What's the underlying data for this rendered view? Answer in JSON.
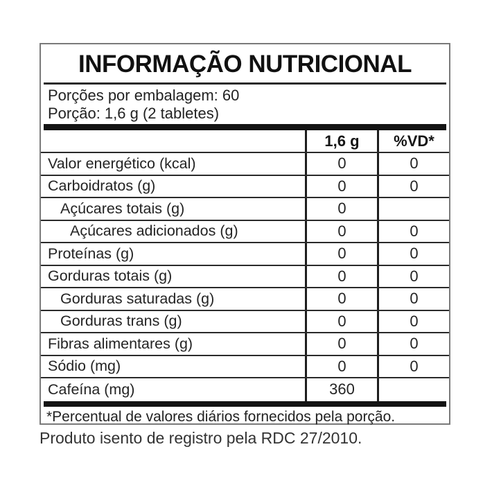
{
  "label": {
    "title": "INFORMAÇÃO NUTRICIONAL",
    "serving_info": {
      "servings_per_package": "Porções por embalagem: 60",
      "portion": "Porção: 1,6 g (2 tabletes)"
    },
    "table": {
      "columns": {
        "portion": "1,6 g",
        "daily_value": "%VD*"
      },
      "rows": [
        {
          "label": "Valor energético (kcal)",
          "portion": "0",
          "dv": "0"
        },
        {
          "label": "Carboidratos (g)",
          "portion": "0",
          "dv": "0"
        },
        {
          "label": "Açúcares totais (g)",
          "portion": "0",
          "dv": ""
        },
        {
          "label": "Açúcares adicionados (g)",
          "portion": "0",
          "dv": "0"
        },
        {
          "label": "Proteínas (g)",
          "portion": "0",
          "dv": "0"
        },
        {
          "label": "Gorduras totais (g)",
          "portion": "0",
          "dv": "0"
        },
        {
          "label": "Gorduras saturadas (g)",
          "portion": "0",
          "dv": "0"
        },
        {
          "label": "Gorduras trans (g)",
          "portion": "0",
          "dv": "0"
        },
        {
          "label": "Fibras alimentares (g)",
          "portion": "0",
          "dv": "0"
        },
        {
          "label": "Sódio (mg)",
          "portion": "0",
          "dv": "0"
        },
        {
          "label": "Cafeína (mg)",
          "portion": "360",
          "dv": ""
        }
      ]
    },
    "footnote": "*Percentual de valores diários fornecidos pela porção."
  },
  "registration_note": "Produto isento de registro pela RDC 27/2010.",
  "colors": {
    "background": "#ffffff",
    "text": "#242424",
    "title": "#111111",
    "grid_line": "#2a2a2a",
    "thick_bar": "#131313",
    "outer_border": "#7a7a7a"
  }
}
